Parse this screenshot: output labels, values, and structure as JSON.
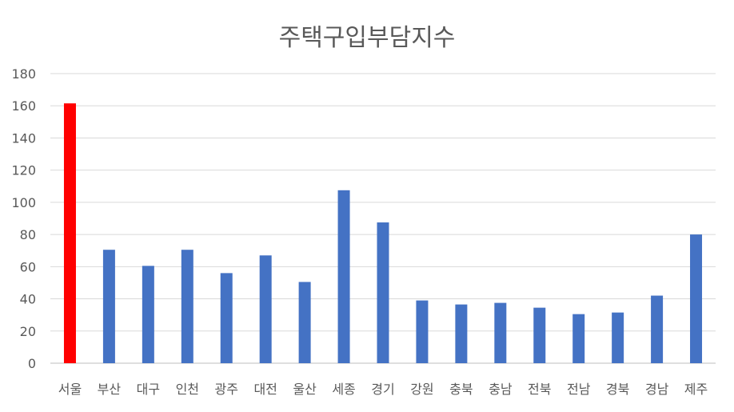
{
  "chart_data": {
    "type": "bar",
    "title": "주택구입부담지수",
    "xlabel": "",
    "ylabel": "",
    "ylim": [
      0,
      180
    ],
    "yticks": [
      0,
      20,
      40,
      60,
      80,
      100,
      120,
      140,
      160,
      180
    ],
    "grid": true,
    "legend": "none",
    "categories": [
      "서울",
      "부산",
      "대구",
      "인천",
      "광주",
      "대전",
      "울산",
      "세종",
      "경기",
      "강원",
      "충북",
      "충남",
      "전북",
      "전남",
      "경북",
      "경남",
      "제주"
    ],
    "series": [
      {
        "values": [
          161.5,
          70.5,
          60.5,
          70.5,
          56,
          67,
          50.5,
          107.5,
          87.5,
          39,
          36.5,
          37.5,
          34.5,
          30.5,
          31.5,
          42,
          80
        ]
      }
    ],
    "colors": {
      "default_bar": "#4472C4",
      "highlight_bar": "#FF0000",
      "highlight_category": "서울",
      "grid": "#D9D9D9",
      "axis": "#BFBFBF",
      "text": "#595959"
    }
  }
}
